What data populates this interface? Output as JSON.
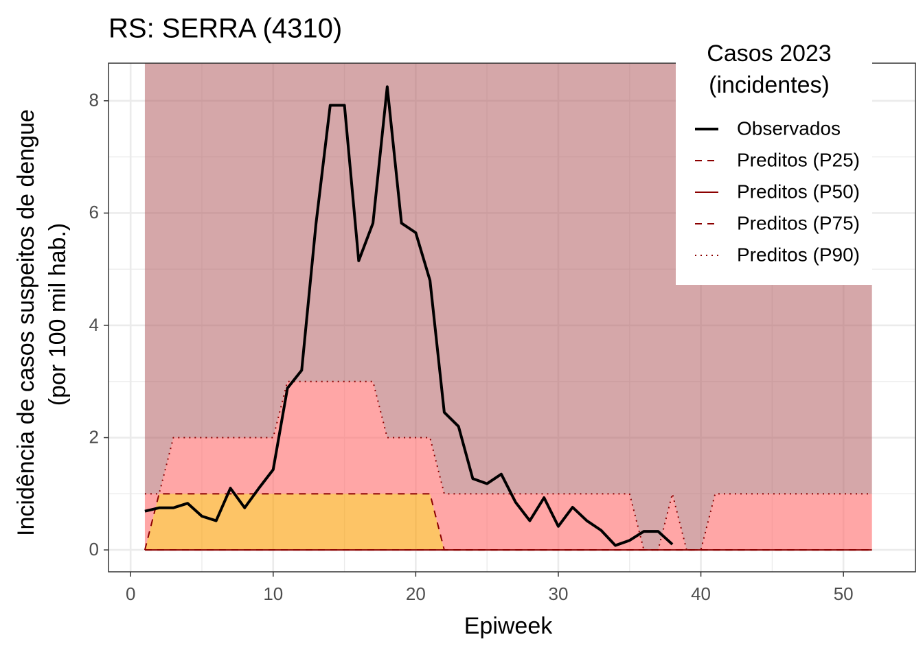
{
  "chart_data": {
    "type": "line",
    "title": "RS: SERRA (4310)",
    "x_label": "Epiweek",
    "y_label": [
      "Incidência de casos suspeitos de dengue",
      "(por 100 mil hab.)"
    ],
    "legend_title": [
      "Casos 2023",
      "(incidentes)"
    ],
    "x": [
      1,
      2,
      3,
      4,
      5,
      6,
      7,
      8,
      9,
      10,
      11,
      12,
      13,
      14,
      15,
      16,
      17,
      18,
      19,
      20,
      21,
      22,
      23,
      24,
      25,
      26,
      27,
      28,
      29,
      30,
      31,
      32,
      33,
      34,
      35,
      36,
      37,
      38,
      39,
      40,
      41,
      42,
      43,
      44,
      45,
      46,
      47,
      48,
      49,
      50,
      51,
      52
    ],
    "series": [
      {
        "name": "Observados",
        "color": "#000000",
        "dash": "solid",
        "width": 4,
        "values": [
          0.69,
          0.75,
          0.75,
          0.83,
          0.6,
          0.52,
          1.1,
          0.75,
          1.1,
          1.43,
          2.88,
          3.2,
          5.8,
          7.92,
          7.92,
          5.15,
          5.82,
          8.25,
          5.82,
          5.65,
          4.8,
          2.45,
          2.2,
          1.27,
          1.18,
          1.35,
          0.85,
          0.52,
          0.93,
          0.42,
          0.76,
          0.52,
          0.35,
          0.08,
          0.17,
          0.33,
          0.33,
          0.1,
          null,
          null,
          null,
          null,
          null,
          null,
          null,
          null,
          null,
          null,
          null,
          null,
          null,
          null
        ]
      },
      {
        "name": "Preditos (P25)",
        "color": "#8b0000",
        "dash": "dashed",
        "width": 2,
        "values": [
          0,
          0,
          0,
          0,
          0,
          0,
          0,
          0,
          0,
          0,
          0,
          0,
          0,
          0,
          0,
          0,
          0,
          0,
          0,
          0,
          0,
          0,
          0,
          0,
          0,
          0,
          0,
          0,
          0,
          0,
          0,
          0,
          0,
          0,
          0,
          0,
          0,
          0,
          0,
          0,
          0,
          0,
          0,
          0,
          0,
          0,
          0,
          0,
          0,
          0,
          0,
          0
        ]
      },
      {
        "name": "Preditos (P50)",
        "color": "#8b0000",
        "dash": "solid",
        "width": 2,
        "values": [
          0,
          0,
          0,
          0,
          0,
          0,
          0,
          0,
          0,
          0,
          0,
          0,
          0,
          0,
          0,
          0,
          0,
          0,
          0,
          0,
          0,
          0,
          0,
          0,
          0,
          0,
          0,
          0,
          0,
          0,
          0,
          0,
          0,
          0,
          0,
          0,
          0,
          0,
          0,
          0,
          0,
          0,
          0,
          0,
          0,
          0,
          0,
          0,
          0,
          0,
          0,
          0
        ]
      },
      {
        "name": "Preditos (P75)",
        "color": "#8b0000",
        "dash": "dashed",
        "width": 2,
        "fill_below": "#fb9d00",
        "values": [
          0,
          1,
          1,
          1,
          1,
          1,
          1,
          1,
          1,
          1,
          1,
          1,
          1,
          1,
          1,
          1,
          1,
          1,
          1,
          1,
          1,
          0,
          0,
          0,
          0,
          0,
          0,
          0,
          0,
          0,
          0,
          0,
          0,
          0,
          0,
          0,
          0,
          0,
          0,
          0,
          0,
          0,
          0,
          0,
          0,
          0,
          0,
          0,
          0,
          0,
          0,
          0
        ]
      },
      {
        "name": "Preditos (P90)",
        "color": "#8b0000",
        "dash": "dotted",
        "width": 2,
        "fill_below": "#ff6b6b",
        "fill_above": "#b35f63",
        "values": [
          1,
          1,
          2,
          2,
          2,
          2,
          2,
          2,
          2,
          2,
          3,
          3,
          3,
          3,
          3,
          3,
          3,
          2,
          2,
          2,
          2,
          1,
          1,
          1,
          1,
          1,
          1,
          1,
          1,
          1,
          1,
          1,
          1,
          1,
          1,
          0,
          0,
          1,
          0,
          0,
          1,
          1,
          1,
          1,
          1,
          1,
          1,
          1,
          1,
          1,
          1,
          1
        ]
      }
    ],
    "xlim": [
      -1.55,
      55.05
    ],
    "ylim": [
      -0.39,
      8.67
    ],
    "xticks": [
      0,
      10,
      20,
      30,
      40,
      50
    ],
    "yticks": [
      0,
      2,
      4,
      6,
      8
    ],
    "xminor": [
      5,
      15,
      25,
      35,
      45
    ],
    "yminor": [
      1,
      3,
      5,
      7
    ],
    "grid": true,
    "legend_position": "top-right"
  }
}
